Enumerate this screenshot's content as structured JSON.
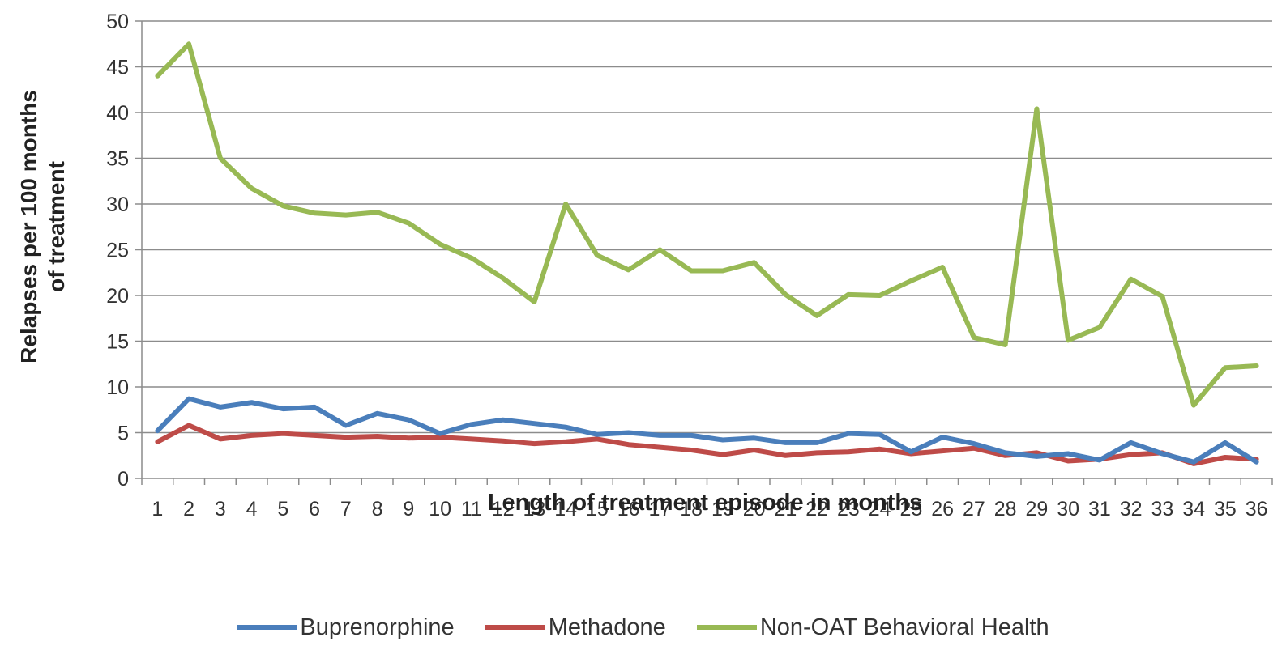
{
  "chart_data": {
    "type": "line",
    "title": "",
    "xlabel": "Length of treatment episode in months",
    "ylabel_lines": [
      "Relapses per 100 months",
      "of treatment"
    ],
    "ylim": [
      0,
      50
    ],
    "yticks": [
      0,
      5,
      10,
      15,
      20,
      25,
      30,
      35,
      40,
      45,
      50
    ],
    "grid": "horizontal",
    "legend_position": "bottom",
    "categories": [
      "1",
      "2",
      "3",
      "4",
      "5",
      "6",
      "7",
      "8",
      "9",
      "10",
      "11",
      "12",
      "13",
      "14",
      "15",
      "16",
      "17",
      "18",
      "19",
      "20",
      "21",
      "22",
      "23",
      "24",
      "25",
      "26",
      "27",
      "28",
      "29",
      "30",
      "31",
      "32",
      "33",
      "34",
      "35",
      "36"
    ],
    "series": [
      {
        "name": "Buprenorphine",
        "color": "#4a7ebb",
        "values": [
          5.2,
          8.7,
          7.8,
          8.3,
          7.6,
          7.8,
          5.8,
          7.1,
          6.4,
          4.9,
          5.9,
          6.4,
          6.0,
          5.6,
          4.8,
          5.0,
          4.7,
          4.7,
          4.2,
          4.4,
          3.9,
          3.9,
          4.9,
          4.8,
          2.9,
          4.5,
          3.8,
          2.8,
          2.4,
          2.7,
          2.0,
          3.9,
          2.7,
          1.8,
          3.9,
          1.8
        ]
      },
      {
        "name": "Methadone",
        "color": "#be4b48",
        "values": [
          4.0,
          5.8,
          4.3,
          4.7,
          4.9,
          4.7,
          4.5,
          4.6,
          4.4,
          4.5,
          4.3,
          4.1,
          3.8,
          4.0,
          4.3,
          3.7,
          3.4,
          3.1,
          2.6,
          3.1,
          2.5,
          2.8,
          2.9,
          3.2,
          2.7,
          3.0,
          3.3,
          2.5,
          2.8,
          1.9,
          2.1,
          2.6,
          2.8,
          1.6,
          2.3,
          2.1
        ]
      },
      {
        "name": "Non-OAT Behavioral Health",
        "color": "#98b954",
        "values": [
          44,
          47.5,
          35,
          31.7,
          29.8,
          29.0,
          28.8,
          29.1,
          27.9,
          25.6,
          24.1,
          21.9,
          19.3,
          30.0,
          24.4,
          22.8,
          25.0,
          22.7,
          22.7,
          23.6,
          20.1,
          17.8,
          20.1,
          20.0,
          21.6,
          23.1,
          15.4,
          14.6,
          40.4,
          15.1,
          16.5,
          21.8,
          19.9,
          8.0,
          12.1,
          12.3
        ]
      }
    ]
  }
}
